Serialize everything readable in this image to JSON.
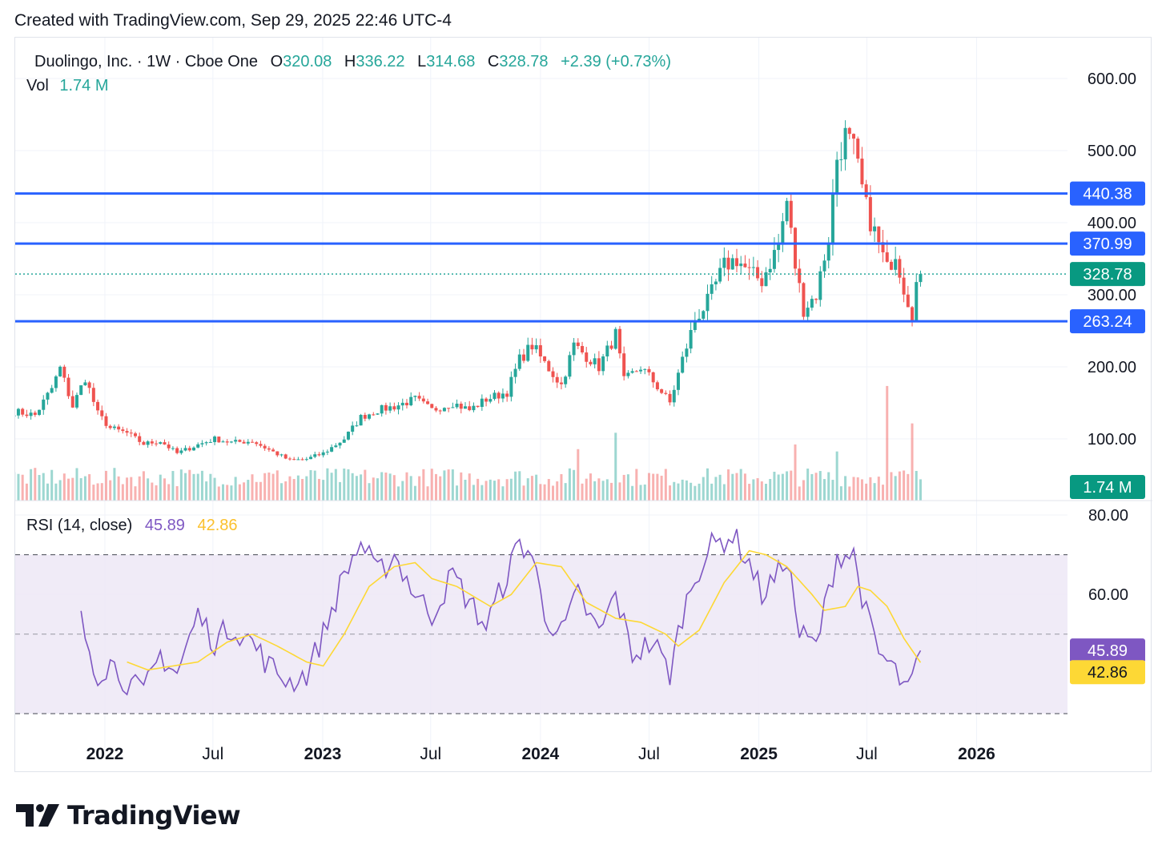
{
  "header": {
    "created_with": "Created with TradingView.com, Sep 29, 2025 22:46 UTC-4"
  },
  "legend": {
    "symbol": "Duolingo, Inc. · 1W · Cboe One",
    "o_label": "O",
    "o_value": "320.08",
    "h_label": "H",
    "h_value": "336.22",
    "l_label": "L",
    "l_value": "314.68",
    "c_label": "C",
    "c_value": "328.78",
    "change": "+2.39 (+0.73%)",
    "vol_label": "Vol",
    "vol_value": "1.74 M",
    "rsi_label": "RSI (14, close)",
    "rsi_value": "45.89",
    "rsi_ma_value": "42.86"
  },
  "brand": {
    "name": "TradingView"
  },
  "colors": {
    "up": "#26a69a",
    "down": "#ef5350",
    "level_line": "#2962ff",
    "rsi": "#7e57c2",
    "rsi_ma": "#fdd835",
    "rsi_band": "#ede7f6"
  },
  "chart_data": [
    {
      "type": "candlestick",
      "ylim": [
        90,
        600
      ],
      "y_ticks": [
        "600.00",
        "500.00",
        "400.00",
        "300.00",
        "200.00",
        "100.00"
      ],
      "x_ticks": [
        "2022",
        "Jul",
        "2023",
        "Jul",
        "2024",
        "Jul",
        "2025",
        "Jul",
        "2026"
      ],
      "x_range": [
        "2021-08",
        "2026-06"
      ],
      "horizontal_levels": [
        "440.38",
        "370.99",
        "263.24"
      ],
      "last_price": "328.78",
      "price_path": [
        [
          "2021-08-02",
          138
        ],
        [
          "2021-09-06",
          133
        ],
        [
          "2021-10-04",
          170
        ],
        [
          "2021-10-18",
          198
        ],
        [
          "2021-11-08",
          145
        ],
        [
          "2021-11-29",
          185
        ],
        [
          "2021-12-20",
          135
        ],
        [
          "2022-01-10",
          115
        ],
        [
          "2022-02-07",
          108
        ],
        [
          "2022-03-07",
          93
        ],
        [
          "2022-04-04",
          97
        ],
        [
          "2022-05-02",
          80
        ],
        [
          "2022-06-06",
          92
        ],
        [
          "2022-07-04",
          100
        ],
        [
          "2022-08-01",
          95
        ],
        [
          "2022-09-05",
          97
        ],
        [
          "2022-10-03",
          85
        ],
        [
          "2022-11-07",
          70
        ],
        [
          "2022-12-05",
          72
        ],
        [
          "2023-01-02",
          80
        ],
        [
          "2023-02-06",
          100
        ],
        [
          "2023-03-06",
          130
        ],
        [
          "2023-04-03",
          140
        ],
        [
          "2023-05-01",
          145
        ],
        [
          "2023-06-05",
          155
        ],
        [
          "2023-07-03",
          140
        ],
        [
          "2023-08-07",
          150
        ],
        [
          "2023-09-04",
          140
        ],
        [
          "2023-10-02",
          155
        ],
        [
          "2023-11-06",
          165
        ],
        [
          "2023-11-27",
          210
        ],
        [
          "2023-12-18",
          230
        ],
        [
          "2024-01-08",
          205
        ],
        [
          "2024-02-05",
          175
        ],
        [
          "2024-02-26",
          230
        ],
        [
          "2024-03-18",
          215
        ],
        [
          "2024-04-08",
          200
        ],
        [
          "2024-05-06",
          245
        ],
        [
          "2024-05-20",
          180
        ],
        [
          "2024-06-17",
          200
        ],
        [
          "2024-07-08",
          180
        ],
        [
          "2024-08-05",
          150
        ],
        [
          "2024-08-26",
          210
        ],
        [
          "2024-09-16",
          265
        ],
        [
          "2024-10-07",
          290
        ],
        [
          "2024-11-04",
          340
        ],
        [
          "2024-11-25",
          350
        ],
        [
          "2024-12-16",
          330
        ],
        [
          "2025-01-06",
          320
        ],
        [
          "2025-02-03",
          370
        ],
        [
          "2025-02-17",
          430
        ],
        [
          "2025-03-03",
          340
        ],
        [
          "2025-03-17",
          280
        ],
        [
          "2025-04-07",
          300
        ],
        [
          "2025-04-28",
          380
        ],
        [
          "2025-05-12",
          490
        ],
        [
          "2025-05-26",
          520
        ],
        [
          "2025-06-09",
          500
        ],
        [
          "2025-06-30",
          420
        ],
        [
          "2025-07-21",
          370
        ],
        [
          "2025-08-04",
          335
        ],
        [
          "2025-08-18",
          360
        ],
        [
          "2025-09-01",
          310
        ],
        [
          "2025-09-15",
          275
        ],
        [
          "2025-09-22",
          315
        ],
        [
          "2025-09-29",
          328.78
        ]
      ]
    },
    {
      "type": "bar",
      "name": "Vol",
      "last_value": "1.74 M",
      "spikes": [
        [
          "2025-08-04",
          0.98
        ],
        [
          "2025-09-15",
          0.66
        ],
        [
          "2024-05-06",
          0.58
        ],
        [
          "2024-03-04",
          0.44
        ],
        [
          "2025-03-03",
          0.48
        ],
        [
          "2025-05-12",
          0.42
        ]
      ]
    },
    {
      "type": "line",
      "name": "RSI (14, close)",
      "ylim": [
        28,
        80
      ],
      "y_ticks": [
        "80.00",
        "60.00"
      ],
      "bands": {
        "upper": 70,
        "middle": 50,
        "lower": 30
      },
      "last_value": "45.89",
      "ma_last_value": "42.86",
      "rsi_path": [
        [
          "2021-11-22",
          53
        ],
        [
          "2021-12-20",
          40
        ],
        [
          "2022-01-10",
          43
        ],
        [
          "2022-02-07",
          38
        ],
        [
          "2022-03-07",
          35
        ],
        [
          "2022-04-04",
          45
        ],
        [
          "2022-05-02",
          40
        ],
        [
          "2022-06-06",
          55
        ],
        [
          "2022-07-04",
          48
        ],
        [
          "2022-08-01",
          52
        ],
        [
          "2022-09-05",
          48
        ],
        [
          "2022-10-03",
          42
        ],
        [
          "2022-11-07",
          38
        ],
        [
          "2022-12-05",
          40
        ],
        [
          "2023-01-02",
          50
        ],
        [
          "2023-02-06",
          65
        ],
        [
          "2023-03-06",
          73
        ],
        [
          "2023-04-03",
          65
        ],
        [
          "2023-05-01",
          70
        ],
        [
          "2023-06-05",
          60
        ],
        [
          "2023-07-03",
          55
        ],
        [
          "2023-08-07",
          65
        ],
        [
          "2023-09-04",
          58
        ],
        [
          "2023-10-02",
          52
        ],
        [
          "2023-11-06",
          65
        ],
        [
          "2023-11-27",
          73
        ],
        [
          "2023-12-18",
          70
        ],
        [
          "2024-01-08",
          55
        ],
        [
          "2024-02-05",
          50
        ],
        [
          "2024-03-04",
          60
        ],
        [
          "2024-04-08",
          50
        ],
        [
          "2024-05-06",
          60
        ],
        [
          "2024-06-03",
          45
        ],
        [
          "2024-07-08",
          48
        ],
        [
          "2024-08-05",
          40
        ],
        [
          "2024-08-26",
          55
        ],
        [
          "2024-09-16",
          65
        ],
        [
          "2024-10-14",
          72
        ],
        [
          "2024-11-18",
          75
        ],
        [
          "2024-12-16",
          68
        ],
        [
          "2025-01-06",
          60
        ],
        [
          "2025-02-03",
          65
        ],
        [
          "2025-02-17",
          70
        ],
        [
          "2025-03-10",
          50
        ],
        [
          "2025-04-07",
          47
        ],
        [
          "2025-05-12",
          70
        ],
        [
          "2025-06-09",
          70
        ],
        [
          "2025-06-30",
          55
        ],
        [
          "2025-07-21",
          45
        ],
        [
          "2025-08-11",
          42
        ],
        [
          "2025-09-08",
          35
        ],
        [
          "2025-09-29",
          45.89
        ]
      ],
      "rsi_ma_path": [
        [
          "2022-02-07",
          43
        ],
        [
          "2022-03-14",
          41
        ],
        [
          "2022-04-25",
          42
        ],
        [
          "2022-06-06",
          43
        ],
        [
          "2022-07-25",
          48
        ],
        [
          "2022-09-05",
          50
        ],
        [
          "2022-10-17",
          47
        ],
        [
          "2022-12-05",
          43
        ],
        [
          "2023-01-02",
          42
        ],
        [
          "2023-02-06",
          50
        ],
        [
          "2023-03-20",
          62
        ],
        [
          "2023-05-01",
          67
        ],
        [
          "2023-06-05",
          68
        ],
        [
          "2023-07-03",
          64
        ],
        [
          "2023-08-14",
          62
        ],
        [
          "2023-10-09",
          57
        ],
        [
          "2023-11-13",
          60
        ],
        [
          "2023-12-25",
          68
        ],
        [
          "2024-02-05",
          67
        ],
        [
          "2024-03-18",
          58
        ],
        [
          "2024-05-06",
          54
        ],
        [
          "2024-06-17",
          53
        ],
        [
          "2024-07-29",
          50
        ],
        [
          "2024-08-19",
          47
        ],
        [
          "2024-09-23",
          51
        ],
        [
          "2024-11-04",
          63
        ],
        [
          "2024-12-16",
          71
        ],
        [
          "2025-01-13",
          70
        ],
        [
          "2025-02-17",
          67
        ],
        [
          "2025-03-31",
          60
        ],
        [
          "2025-04-21",
          56
        ],
        [
          "2025-05-26",
          57
        ],
        [
          "2025-06-16",
          62
        ],
        [
          "2025-07-07",
          61
        ],
        [
          "2025-08-04",
          57
        ],
        [
          "2025-09-01",
          49
        ],
        [
          "2025-09-29",
          42.86
        ]
      ]
    }
  ]
}
